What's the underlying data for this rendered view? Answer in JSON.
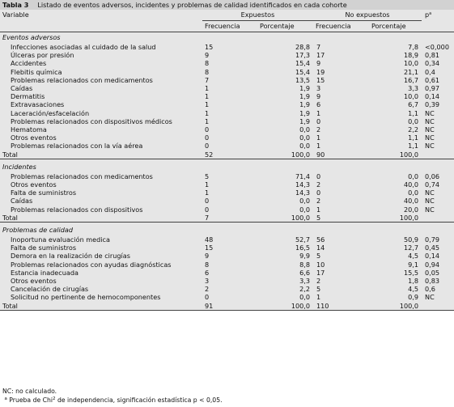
{
  "title": {
    "label": "Tabla 3",
    "text": "Listado de eventos adversos, incidentes y problemas de calidad identificados en cada cohorte"
  },
  "header": {
    "variable": "Variable",
    "expuestos": "Expuestos",
    "no_expuestos": "No expuestos",
    "p": "p",
    "p_sup": "a",
    "frecuencia": "Frecuencia",
    "porcentaje": "Porcentaje"
  },
  "sections": [
    {
      "name": "Eventos adversos",
      "rows": [
        {
          "label": "Infecciones asociadas al cuidado de la salud",
          "f1": "15",
          "p1": "28,8",
          "f2": "7",
          "p2": "7,8",
          "p": "<0,000"
        },
        {
          "label": "Úlceras por presión",
          "f1": "9",
          "p1": "17,3",
          "f2": "17",
          "p2": "18,9",
          "p": "0,81"
        },
        {
          "label": "Accidentes",
          "f1": "8",
          "p1": "15,4",
          "f2": "9",
          "p2": "10,0",
          "p": "0,34"
        },
        {
          "label": "Flebitis química",
          "f1": "8",
          "p1": "15,4",
          "f2": "19",
          "p2": "21,1",
          "p": "0,4"
        },
        {
          "label": "Problemas relacionados con medicamentos",
          "f1": "7",
          "p1": "13,5",
          "f2": "15",
          "p2": "16,7",
          "p": "0,61"
        },
        {
          "label": "Caídas",
          "f1": "1",
          "p1": "1,9",
          "f2": "3",
          "p2": "3,3",
          "p": "0,97"
        },
        {
          "label": "Dermatitis",
          "f1": "1",
          "p1": "1,9",
          "f2": "9",
          "p2": "10,0",
          "p": "0,14"
        },
        {
          "label": "Extravasaciones",
          "f1": "1",
          "p1": "1,9",
          "f2": "6",
          "p2": "6,7",
          "p": "0,39"
        },
        {
          "label": "Laceración/esfacelación",
          "f1": "1",
          "p1": "1,9",
          "f2": "1",
          "p2": "1,1",
          "p": "NC"
        },
        {
          "label": "Problemas relacionados con dispositivos médicos",
          "f1": "1",
          "p1": "1,9",
          "f2": "0",
          "p2": "0,0",
          "p": "NC"
        },
        {
          "label": "Hematoma",
          "f1": "0",
          "p1": "0,0",
          "f2": "2",
          "p2": "2,2",
          "p": "NC"
        },
        {
          "label": "Otros eventos",
          "f1": "0",
          "p1": "0,0",
          "f2": "1",
          "p2": "1,1",
          "p": "NC"
        },
        {
          "label": "Problemas relacionados con la vía aérea",
          "f1": "0",
          "p1": "0,0",
          "f2": "1",
          "p2": "1,1",
          "p": "NC"
        }
      ],
      "total": {
        "label": "Total",
        "f1": "52",
        "p1": "100,0",
        "f2": "90",
        "p2": "100,0",
        "p": ""
      }
    },
    {
      "name": "Incidentes",
      "rows": [
        {
          "label": "Problemas relacionados con medicamentos",
          "f1": "5",
          "p1": "71,4",
          "f2": "0",
          "p2": "0,0",
          "p": "0,06"
        },
        {
          "label": "Otros eventos",
          "f1": "1",
          "p1": "14,3",
          "f2": "2",
          "p2": "40,0",
          "p": "0,74"
        },
        {
          "label": "Falta de suministros",
          "f1": "1",
          "p1": "14,3",
          "f2": "0",
          "p2": "0,0",
          "p": "NC"
        },
        {
          "label": "Caídas",
          "f1": "0",
          "p1": "0,0",
          "f2": "2",
          "p2": "40,0",
          "p": "NC"
        },
        {
          "label": "Problemas relacionados con dispositivos",
          "f1": "0",
          "p1": "0,0",
          "f2": "1",
          "p2": "20,0",
          "p": "NC"
        }
      ],
      "total": {
        "label": "Total",
        "f1": "7",
        "p1": "100,0",
        "f2": "5",
        "p2": "100,0",
        "p": ""
      }
    },
    {
      "name": "Problemas de calidad",
      "rows": [
        {
          "label": "Inoportuna evaluación medica",
          "f1": "48",
          "p1": "52,7",
          "f2": "56",
          "p2": "50,9",
          "p": "0,79"
        },
        {
          "label": "Falta de suministros",
          "f1": "15",
          "p1": "16,5",
          "f2": "14",
          "p2": "12,7",
          "p": "0,45"
        },
        {
          "label": "Demora en la realización de cirugías",
          "f1": "9",
          "p1": "9,9",
          "f2": "5",
          "p2": "4,5",
          "p": "0,14"
        },
        {
          "label": "Problemas relacionados con ayudas diagnósticas",
          "f1": "8",
          "p1": "8,8",
          "f2": "10",
          "p2": "9,1",
          "p": "0,94"
        },
        {
          "label": "Estancia inadecuada",
          "f1": "6",
          "p1": "6,6",
          "f2": "17",
          "p2": "15,5",
          "p": "0,05"
        },
        {
          "label": "Otros eventos",
          "f1": "3",
          "p1": "3,3",
          "f2": "2",
          "p2": "1,8",
          "p": "0,83"
        },
        {
          "label": "Cancelación de cirugías",
          "f1": "2",
          "p1": "2,2",
          "f2": "5",
          "p2": "4,5",
          "p": "0,6"
        },
        {
          "label": "Solicitud no pertinente de hemocomponentes",
          "f1": "0",
          "p1": "0,0",
          "f2": "1",
          "p2": "0,9",
          "p": "NC"
        }
      ],
      "total": {
        "label": "Total",
        "f1": "91",
        "p1": "100,0",
        "f2": "110",
        "p2": "100,0",
        "p": ""
      }
    }
  ],
  "notes": {
    "nc": "NC: no calculado.",
    "a_sup": "a",
    "a_text_1": "Prueba de Chi",
    "a_text_sup": "2",
    "a_text_2": " de independencia, significación estadística p < 0,05."
  }
}
